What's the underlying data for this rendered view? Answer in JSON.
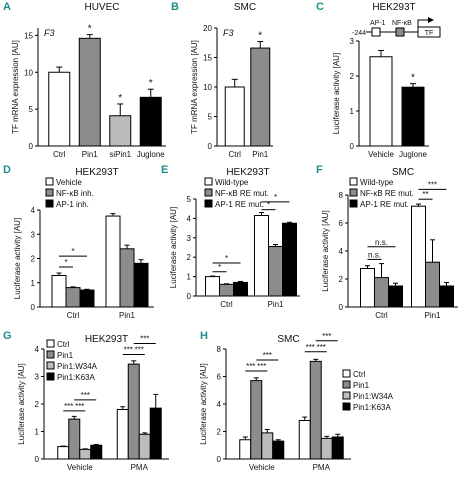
{
  "chart_data": [
    {
      "panel": "A",
      "type": "bar",
      "title": "HUVEC",
      "gene": "F3",
      "ylabel": "TF mRNA expression [AU]",
      "categories": [
        "Ctrl",
        "Pin1",
        "siPin1",
        "Juglone"
      ],
      "ylim": [
        0,
        16
      ],
      "yticks": [
        0,
        5,
        10,
        15
      ],
      "series": [
        {
          "values": [
            10.0,
            14.6,
            4.1,
            6.6
          ],
          "errors": [
            0.7,
            0.5,
            1.6,
            1.1
          ],
          "colors": [
            "#ffffff",
            "#8c8c8c",
            "#bcbcbc",
            "#000000"
          ]
        }
      ],
      "annotations": [
        "*",
        "*",
        "*"
      ]
    },
    {
      "panel": "B",
      "type": "bar",
      "title": "SMC",
      "gene": "F3",
      "ylabel": "TF mRNA expression [AU]",
      "categories": [
        "Ctrl",
        "Pin1"
      ],
      "ylim": [
        0,
        20
      ],
      "yticks": [
        0,
        5,
        10,
        15,
        20
      ],
      "series": [
        {
          "values": [
            10.0,
            16.6
          ],
          "errors": [
            1.3,
            1.1
          ],
          "colors": [
            "#ffffff",
            "#8c8c8c"
          ]
        }
      ],
      "annotations": [
        "*"
      ]
    },
    {
      "panel": "C",
      "type": "bar",
      "title": "HEK293T",
      "ylabel": "Luciferase activity [AU]",
      "categories": [
        "Vehicle",
        "Juglone"
      ],
      "ylim": [
        0,
        3
      ],
      "yticks": [
        0,
        1,
        2,
        3
      ],
      "series": [
        {
          "values": [
            2.55,
            1.68
          ],
          "errors": [
            0.18,
            0.1
          ],
          "colors": [
            "#ffffff",
            "#000000"
          ]
        }
      ],
      "annotations": [
        "*"
      ],
      "construct": {
        "position": "-244",
        "labels": [
          "AP-1",
          "NF-κB",
          "TF"
        ]
      }
    },
    {
      "panel": "D",
      "type": "bar",
      "title": "HEK293T",
      "ylabel": "Luciferase activity [AU]",
      "categories": [
        "Ctrl",
        "Pin1"
      ],
      "ylim": [
        0,
        4
      ],
      "yticks": [
        0,
        1,
        2,
        3,
        4
      ],
      "series": [
        {
          "name": "Vehicle",
          "color": "#ffffff",
          "values": [
            1.3,
            3.75
          ],
          "errors": [
            0.1,
            0.1
          ]
        },
        {
          "name": "NF-κB inh.",
          "color": "#8c8c8c",
          "values": [
            0.8,
            2.4
          ],
          "errors": [
            0.03,
            0.15
          ]
        },
        {
          "name": "AP-1 inh.",
          "color": "#000000",
          "values": [
            0.7,
            1.8
          ],
          "errors": [
            0.03,
            0.15
          ]
        }
      ],
      "annotations": [
        "*",
        "*"
      ]
    },
    {
      "panel": "E",
      "type": "bar",
      "title": "HEK293T",
      "ylabel": "Luciferase activity [AU]",
      "categories": [
        "Ctrl",
        "Pin1"
      ],
      "ylim": [
        0,
        5
      ],
      "yticks": [
        0,
        1,
        2,
        3,
        4,
        5
      ],
      "series": [
        {
          "name": "Wild-type",
          "color": "#ffffff",
          "values": [
            1.0,
            4.15
          ],
          "errors": [
            0.03,
            0.15
          ]
        },
        {
          "name": "NF-κB RE mut.",
          "color": "#8c8c8c",
          "values": [
            0.6,
            2.55
          ],
          "errors": [
            0.03,
            0.1
          ]
        },
        {
          "name": "AP-1 RE mut.",
          "color": "#000000",
          "values": [
            0.7,
            3.75
          ],
          "errors": [
            0.05,
            0.05
          ]
        }
      ],
      "annotations": [
        "*",
        "*",
        "*",
        "*"
      ]
    },
    {
      "panel": "F",
      "type": "bar",
      "title": "SMC",
      "ylabel": "Luciferase activity [AU]",
      "categories": [
        "Ctrl",
        "Pin1"
      ],
      "ylim": [
        0,
        8
      ],
      "yticks": [
        0,
        2,
        4,
        6,
        8
      ],
      "series": [
        {
          "name": "Wild-type",
          "color": "#ffffff",
          "values": [
            2.75,
            7.2
          ],
          "errors": [
            0.2,
            0.15
          ]
        },
        {
          "name": "NF-κB RE mut.",
          "color": "#8c8c8c",
          "values": [
            2.1,
            3.2
          ],
          "errors": [
            1.0,
            1.6
          ]
        },
        {
          "name": "AP-1 RE mut.",
          "color": "#000000",
          "values": [
            1.5,
            1.5
          ],
          "errors": [
            0.2,
            0.25
          ]
        }
      ],
      "annotations": [
        "n.s.",
        "n.s.",
        "**",
        "***"
      ]
    },
    {
      "panel": "G",
      "type": "bar",
      "title": "HEK293T",
      "ylabel": "Luciferase activity [AU]",
      "categories": [
        "Vehicle",
        "PMA"
      ],
      "ylim": [
        0,
        4
      ],
      "yticks": [
        0,
        1,
        2,
        3,
        4
      ],
      "series": [
        {
          "name": "Ctrl",
          "color": "#ffffff",
          "values": [
            0.45,
            1.8
          ],
          "errors": [
            0.02,
            0.1
          ]
        },
        {
          "name": "Pin1",
          "color": "#8c8c8c",
          "values": [
            1.45,
            3.45
          ],
          "errors": [
            0.1,
            0.12
          ]
        },
        {
          "name": "Pin1:W34A",
          "color": "#bcbcbc",
          "values": [
            0.35,
            0.9
          ],
          "errors": [
            0.02,
            0.05
          ]
        },
        {
          "name": "Pin1:K63A",
          "color": "#000000",
          "values": [
            0.5,
            1.85
          ],
          "errors": [
            0.03,
            0.5
          ]
        }
      ],
      "annotations": [
        "***",
        "***",
        "***",
        "***",
        "***",
        "***"
      ]
    },
    {
      "panel": "H",
      "type": "bar",
      "title": "SMC",
      "ylabel": "Luciferase activity [AU]",
      "categories": [
        "Vehicle",
        "PMA"
      ],
      "ylim": [
        0,
        8
      ],
      "yticks": [
        0,
        2,
        4,
        6,
        8
      ],
      "series": [
        {
          "name": "Ctrl",
          "color": "#ffffff",
          "values": [
            1.4,
            2.8
          ],
          "errors": [
            0.2,
            0.25
          ]
        },
        {
          "name": "Pin1",
          "color": "#8c8c8c",
          "values": [
            5.7,
            7.1
          ],
          "errors": [
            0.2,
            0.15
          ]
        },
        {
          "name": "Pin1:W34A",
          "color": "#bcbcbc",
          "values": [
            1.9,
            1.5
          ],
          "errors": [
            0.25,
            0.15
          ]
        },
        {
          "name": "Pin1:K63A",
          "color": "#000000",
          "values": [
            1.3,
            1.6
          ],
          "errors": [
            0.1,
            0.2
          ]
        }
      ],
      "annotations": [
        "***",
        "***",
        "***",
        "***",
        "***",
        "***"
      ]
    }
  ]
}
